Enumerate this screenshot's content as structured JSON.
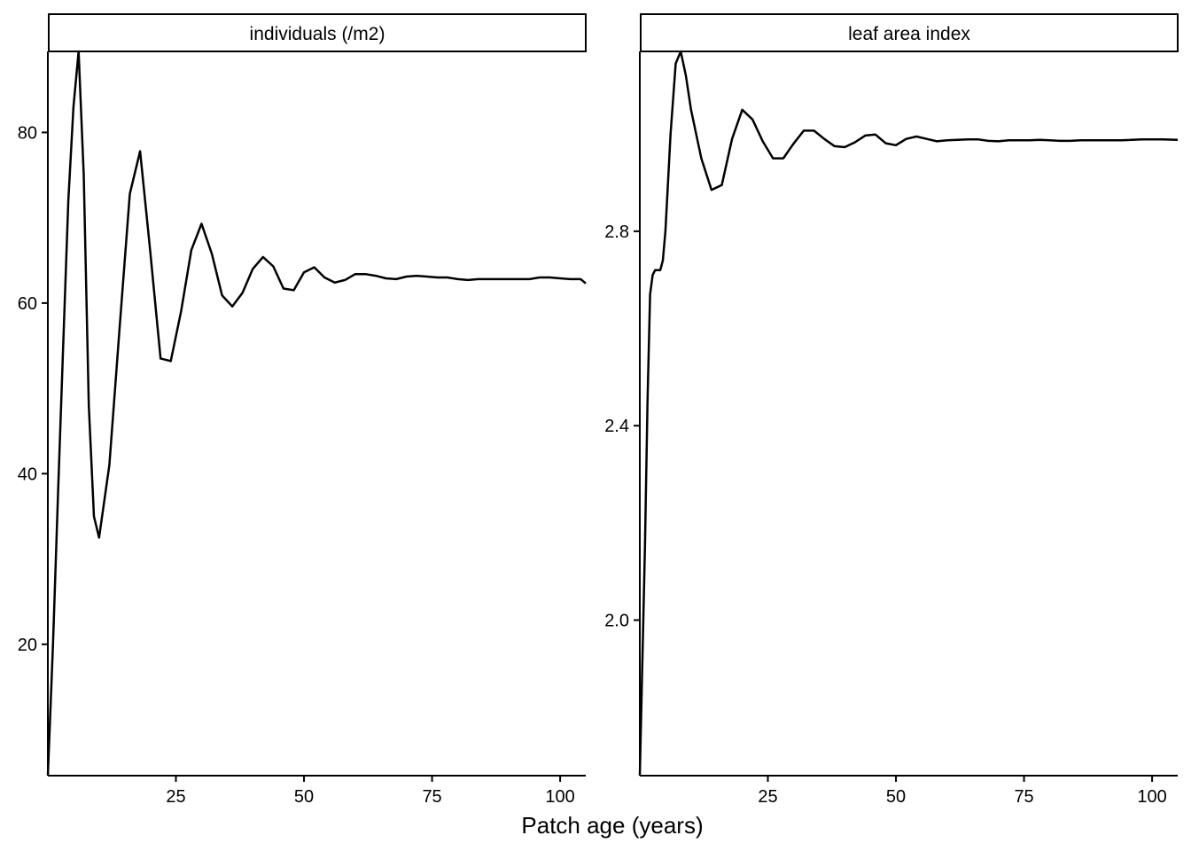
{
  "figure": {
    "xlabel": "Patch age (years)"
  },
  "chart_data": [
    {
      "type": "line",
      "panel": "individuals (/m2)",
      "xlabel": "Patch age (years)",
      "ylabel": "",
      "xlim": [
        0,
        105
      ],
      "ylim": [
        4.6,
        89.5
      ],
      "xticks": [
        25,
        50,
        75,
        100
      ],
      "yticks": [
        20,
        40,
        60,
        80
      ],
      "grid": false,
      "series": [
        {
          "x": [
            0,
            1,
            2,
            3,
            4,
            5,
            6,
            7,
            8,
            9,
            10,
            12,
            14,
            16,
            18,
            20,
            22,
            24,
            26,
            28,
            30,
            32,
            34,
            36,
            38,
            40,
            42,
            44,
            46,
            48,
            50,
            52,
            54,
            56,
            58,
            60,
            62,
            64,
            66,
            68,
            70,
            72,
            74,
            76,
            78,
            80,
            82,
            84,
            86,
            88,
            90,
            92,
            94,
            96,
            98,
            100,
            102,
            104,
            105
          ],
          "y": [
            4.6,
            20,
            38,
            55,
            72,
            83,
            89.5,
            75,
            48,
            35,
            32.5,
            41,
            57,
            72.8,
            77.8,
            66,
            53.5,
            53.2,
            59,
            66.2,
            69.3,
            65.8,
            60.9,
            59.6,
            61.2,
            64,
            65.4,
            64.3,
            61.7,
            61.5,
            63.6,
            64.2,
            63,
            62.4,
            62.7,
            63.4,
            63.4,
            63.2,
            62.9,
            62.8,
            63.1,
            63.2,
            63.1,
            63,
            63,
            62.8,
            62.7,
            62.8,
            62.8,
            62.8,
            62.8,
            62.8,
            62.8,
            63,
            63,
            62.9,
            62.8,
            62.8,
            62.3
          ]
        }
      ]
    },
    {
      "type": "line",
      "panel": "leaf area index",
      "xlabel": "Patch age (years)",
      "ylabel": "",
      "xlim": [
        0,
        105
      ],
      "ylim": [
        1.68,
        3.17
      ],
      "xticks": [
        25,
        50,
        75,
        100
      ],
      "yticks": [
        2.0,
        2.4,
        2.8
      ],
      "grid": false,
      "series": [
        {
          "x": [
            0,
            1,
            1.5,
            2,
            2.5,
            3,
            4,
            4.5,
            5,
            6,
            7,
            8,
            9,
            10,
            12,
            14,
            16,
            18,
            20,
            22,
            24,
            26,
            28,
            30,
            32,
            34,
            36,
            38,
            40,
            42,
            44,
            46,
            48,
            50,
            52,
            54,
            56,
            58,
            60,
            62,
            64,
            66,
            68,
            70,
            72,
            74,
            76,
            78,
            80,
            82,
            84,
            86,
            88,
            90,
            92,
            94,
            96,
            98,
            100,
            102,
            105
          ],
          "y": [
            1.68,
            2.15,
            2.45,
            2.67,
            2.71,
            2.72,
            2.72,
            2.74,
            2.8,
            3.0,
            3.145,
            3.17,
            3.12,
            3.05,
            2.95,
            2.885,
            2.895,
            2.99,
            3.05,
            3.03,
            2.985,
            2.95,
            2.95,
            2.98,
            3.007,
            3.007,
            2.99,
            2.975,
            2.973,
            2.983,
            2.997,
            2.999,
            2.981,
            2.977,
            2.99,
            2.995,
            2.99,
            2.985,
            2.987,
            2.988,
            2.989,
            2.989,
            2.986,
            2.985,
            2.987,
            2.987,
            2.987,
            2.988,
            2.987,
            2.986,
            2.986,
            2.987,
            2.987,
            2.987,
            2.987,
            2.987,
            2.988,
            2.989,
            2.989,
            2.989,
            2.988
          ]
        }
      ]
    }
  ]
}
